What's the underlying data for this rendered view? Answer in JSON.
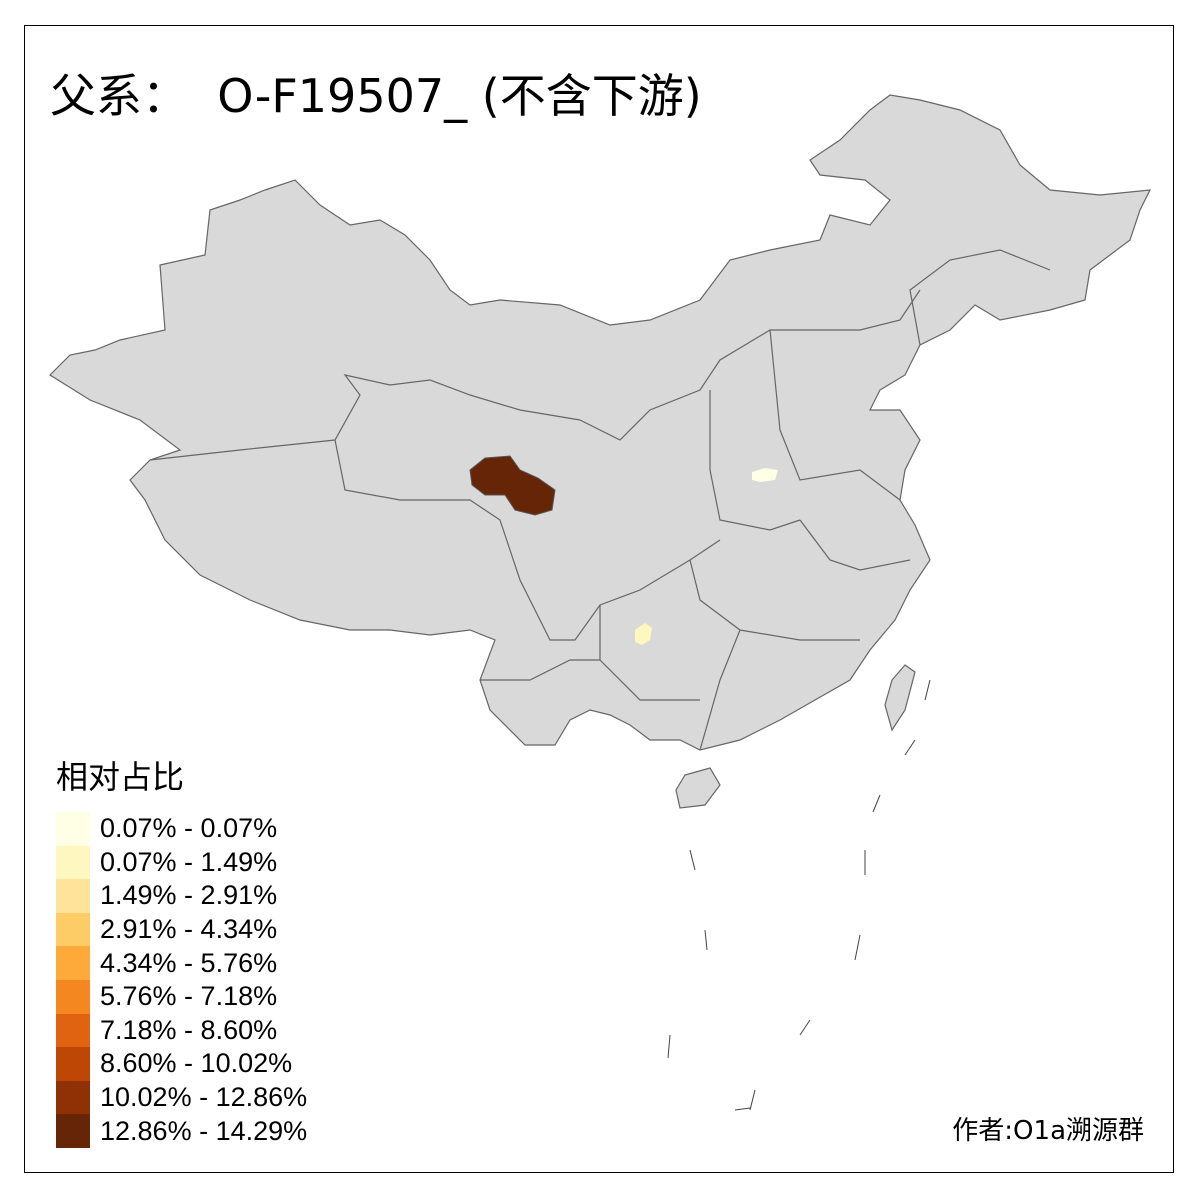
{
  "title": "父系：  O-F19507_ (不含下游)",
  "legend": {
    "title": "相对占比",
    "items": [
      {
        "label": "0.07% - 0.07%",
        "color": "#FFFFE5"
      },
      {
        "label": "0.07% - 1.49%",
        "color": "#FFF7C0"
      },
      {
        "label": "1.49% - 2.91%",
        "color": "#FEE39A"
      },
      {
        "label": "2.91% - 4.34%",
        "color": "#FECC66"
      },
      {
        "label": "4.34% - 5.76%",
        "color": "#FDAA3A"
      },
      {
        "label": "5.76% - 7.18%",
        "color": "#F4871F"
      },
      {
        "label": "7.18% - 8.60%",
        "color": "#E06311"
      },
      {
        "label": "8.60% - 10.02%",
        "color": "#BF4705"
      },
      {
        "label": "10.02% - 12.86%",
        "color": "#8F3104"
      },
      {
        "label": "12.86% - 14.29%",
        "color": "#662506"
      }
    ]
  },
  "map": {
    "base_color": "#D9D9D9",
    "border_color": "#666666",
    "highlighted_regions": [
      {
        "area": "Qinghai-Sichuan border region",
        "class": "12.86% - 14.29%",
        "color": "#662506"
      },
      {
        "area": "Shanxi/Henan region",
        "class": "0.07% - 0.07%",
        "color": "#FFFFE5"
      },
      {
        "area": "Guizhou region",
        "class": "0.07% - 1.49%",
        "color": "#FFF7C0"
      }
    ]
  },
  "credit": "作者:O1a溯源群"
}
